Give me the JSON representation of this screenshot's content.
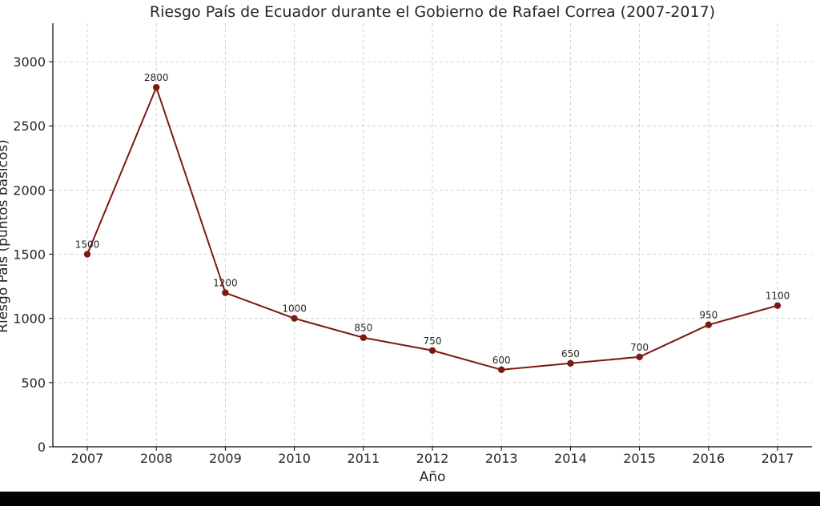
{
  "chart_data": {
    "type": "line",
    "title": "Riesgo País de Ecuador durante el Gobierno de Rafael Correa (2007-2017)",
    "xlabel": "Año",
    "ylabel": "Riesgo País (puntos básicos)",
    "x": [
      "2007",
      "2008",
      "2009",
      "2010",
      "2011",
      "2012",
      "2013",
      "2014",
      "2015",
      "2016",
      "2017"
    ],
    "series": [
      {
        "values": [
          1500,
          2800,
          1200,
          1000,
          850,
          750,
          600,
          650,
          700,
          950,
          1100
        ],
        "color": "#7b1a12"
      }
    ],
    "data_labels": [
      "1500",
      "2800",
      "1200",
      "1000",
      "850",
      "750",
      "600",
      "650",
      "700",
      "950",
      "1100"
    ],
    "yticks": [
      0,
      500,
      1000,
      1500,
      2000,
      2500,
      3000
    ],
    "ytick_labels": [
      "0",
      "500",
      "1000",
      "1500",
      "2000",
      "2500",
      "3000"
    ],
    "ylim": [
      0,
      3300
    ],
    "grid": true,
    "marker": "circle"
  }
}
